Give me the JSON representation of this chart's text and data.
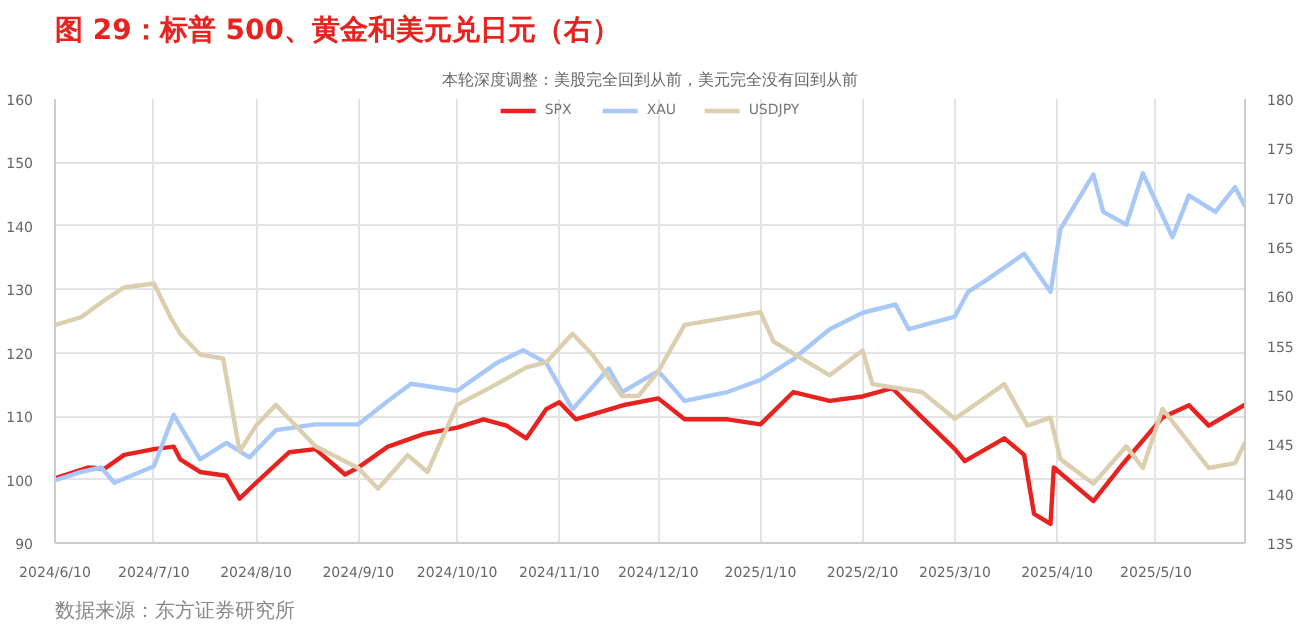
{
  "chart_data": {
    "type": "line",
    "title": "图 29：标普 500、黄金和美元兑日元（右）",
    "subtitle": "本轮深度调整：美股完全回到从前，美元完全没有回到从前",
    "annotations": [
      "数据来源：东方证券研究所"
    ],
    "xlim": [
      "2024-06-10",
      "2025-06-06"
    ],
    "xticks": [
      {
        "value": "2024-06-10",
        "label": "2024/6/10"
      },
      {
        "value": "2024-07-10",
        "label": "2024/7/10"
      },
      {
        "value": "2024-08-10",
        "label": "2024/8/10"
      },
      {
        "value": "2024-09-10",
        "label": "2024/9/10"
      },
      {
        "value": "2024-10-10",
        "label": "2024/10/10"
      },
      {
        "value": "2024-11-10",
        "label": "2024/11/10"
      },
      {
        "value": "2024-12-10",
        "label": "2024/12/10"
      },
      {
        "value": "2025-01-10",
        "label": "2025/1/10"
      },
      {
        "value": "2025-02-10",
        "label": "2025/2/10"
      },
      {
        "value": "2025-03-10",
        "label": "2025/3/10"
      },
      {
        "value": "2025-04-10",
        "label": "2025/4/10"
      },
      {
        "value": "2025-05-10",
        "label": "2025/5/10"
      }
    ],
    "ylim": [
      90,
      160
    ],
    "yticks": [
      90,
      100,
      110,
      120,
      130,
      140,
      150,
      160
    ],
    "y2lim": [
      135,
      180
    ],
    "y2ticks": [
      135,
      140,
      145,
      150,
      155,
      160,
      165,
      170,
      175,
      180
    ],
    "grid": true,
    "legend": "top",
    "line_style": "solid",
    "series": [
      {
        "name": "SPX",
        "color": "#e8231f",
        "x": [
          "2024-06-10",
          "2024-06-20",
          "2024-06-25",
          "2024-07-01",
          "2024-07-10",
          "2024-07-16",
          "2024-07-18",
          "2024-07-24",
          "2024-08-01",
          "2024-08-05",
          "2024-08-10",
          "2024-08-20",
          "2024-08-28",
          "2024-09-06",
          "2024-09-10",
          "2024-09-19",
          "2024-09-30",
          "2024-10-10",
          "2024-10-18",
          "2024-10-25",
          "2024-10-31",
          "2024-11-06",
          "2024-11-10",
          "2024-11-15",
          "2024-11-30",
          "2024-12-10",
          "2024-12-18",
          "2024-12-31",
          "2025-01-10",
          "2025-01-20",
          "2025-01-31",
          "2025-02-10",
          "2025-02-19",
          "2025-02-28",
          "2025-03-10",
          "2025-03-13",
          "2025-03-25",
          "2025-03-31",
          "2025-04-03",
          "2025-04-08",
          "2025-04-09",
          "2025-04-21",
          "2025-04-30",
          "2025-05-12",
          "2025-05-20",
          "2025-05-26",
          "2025-06-06"
        ],
        "values": [
          100.2,
          101.9,
          101.7,
          103.9,
          104.8,
          105.2,
          103.2,
          101.2,
          100.6,
          97.0,
          99.5,
          104.3,
          104.8,
          100.8,
          101.9,
          105.2,
          107.2,
          108.2,
          109.5,
          108.5,
          106.5,
          111.1,
          112.2,
          109.5,
          111.8,
          112.8,
          109.5,
          109.5,
          108.7,
          113.8,
          112.4,
          113.1,
          114.4,
          109.8,
          104.8,
          102.9,
          106.5,
          103.9,
          94.6,
          93.0,
          101.9,
          96.6,
          102.5,
          109.8,
          111.7,
          108.5,
          111.8
        ]
      },
      {
        "name": "XAU",
        "color": "#a8c8f8",
        "x": [
          "2024-06-10",
          "2024-06-18",
          "2024-06-24",
          "2024-06-28",
          "2024-07-10",
          "2024-07-16",
          "2024-07-24",
          "2024-08-01",
          "2024-08-08",
          "2024-08-16",
          "2024-08-28",
          "2024-09-10",
          "2024-09-19",
          "2024-09-26",
          "2024-10-10",
          "2024-10-22",
          "2024-10-30",
          "2024-11-06",
          "2024-11-14",
          "2024-11-25",
          "2024-11-29",
          "2024-12-10",
          "2024-12-18",
          "2024-12-31",
          "2025-01-10",
          "2025-01-20",
          "2025-01-31",
          "2025-02-10",
          "2025-02-20",
          "2025-02-24",
          "2025-03-10",
          "2025-03-14",
          "2025-03-20",
          "2025-03-31",
          "2025-04-08",
          "2025-04-11",
          "2025-04-21",
          "2025-04-24",
          "2025-05-01",
          "2025-05-06",
          "2025-05-15",
          "2025-05-20",
          "2025-05-28",
          "2025-06-03",
          "2025-06-06"
        ],
        "values": [
          99.9,
          101.2,
          101.9,
          99.5,
          102.1,
          110.2,
          103.2,
          105.8,
          103.5,
          107.8,
          108.7,
          108.7,
          112.4,
          115.1,
          114.0,
          118.4,
          120.4,
          118.4,
          111.1,
          117.5,
          113.8,
          117.1,
          112.4,
          113.8,
          115.7,
          119.0,
          123.7,
          126.3,
          127.6,
          123.7,
          125.7,
          129.6,
          131.6,
          135.6,
          129.6,
          139.5,
          148.1,
          142.2,
          140.2,
          148.3,
          138.2,
          144.8,
          142.2,
          146.1,
          143.1
        ]
      },
      {
        "name": "USDJPY",
        "color": "#dccfb0",
        "axis": "y2",
        "x": [
          "2024-06-10",
          "2024-06-18",
          "2024-06-25",
          "2024-07-01",
          "2024-07-10",
          "2024-07-15",
          "2024-07-18",
          "2024-07-24",
          "2024-07-31",
          "2024-08-05",
          "2024-08-10",
          "2024-08-16",
          "2024-08-28",
          "2024-09-10",
          "2024-09-16",
          "2024-09-25",
          "2024-10-01",
          "2024-10-10",
          "2024-10-22",
          "2024-10-31",
          "2024-11-06",
          "2024-11-14",
          "2024-11-20",
          "2024-11-29",
          "2024-12-04",
          "2024-12-10",
          "2024-12-18",
          "2025-01-10",
          "2025-01-14",
          "2025-01-31",
          "2025-02-10",
          "2025-02-13",
          "2025-02-28",
          "2025-03-10",
          "2025-03-25",
          "2025-04-01",
          "2025-04-08",
          "2025-04-11",
          "2025-04-21",
          "2025-05-01",
          "2025-05-06",
          "2025-05-12",
          "2025-05-26",
          "2025-06-03",
          "2025-06-06"
        ],
        "values": [
          157.1,
          157.9,
          159.6,
          160.9,
          161.3,
          157.9,
          156.2,
          154.1,
          153.7,
          144.3,
          146.9,
          149.0,
          144.8,
          142.6,
          140.5,
          143.9,
          142.2,
          149.0,
          151.1,
          152.8,
          153.3,
          156.2,
          154.1,
          149.9,
          149.9,
          152.4,
          157.1,
          158.4,
          155.4,
          152.0,
          154.5,
          151.1,
          150.3,
          147.6,
          151.1,
          146.9,
          147.7,
          143.5,
          141.0,
          144.8,
          142.6,
          148.6,
          142.6,
          143.1,
          145.2
        ]
      }
    ]
  }
}
